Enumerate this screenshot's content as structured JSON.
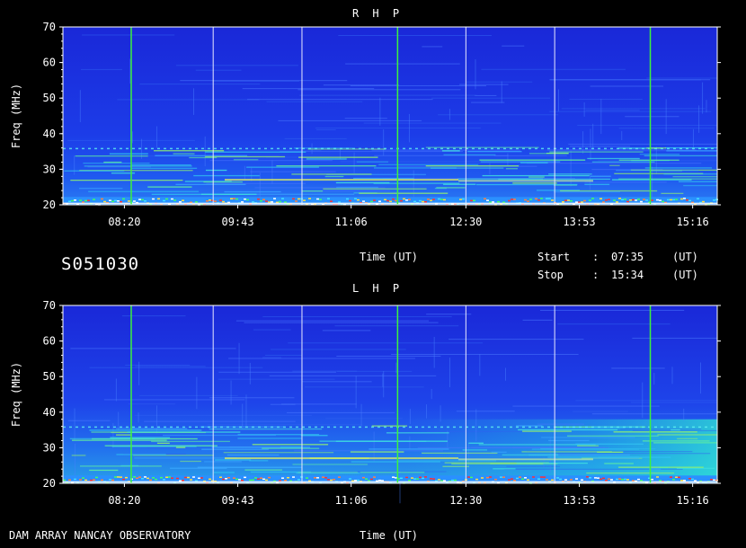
{
  "header": {
    "panel1_title": "R H P",
    "panel2_title": "L H P",
    "xlabel": "Time (UT)",
    "file_code": "S051030",
    "start_label": "Start",
    "start_sep": ":",
    "start_time": "07:35",
    "start_unit": "(UT)",
    "stop_label": "Stop",
    "stop_sep": ":",
    "stop_time": "15:34",
    "stop_unit": "(UT)",
    "footer": "DAM ARRAY  NANCAY OBSERVATORY"
  },
  "colors": {
    "background_blue": "#1a35e8",
    "guide_green": "#3df23d",
    "guide_white": "#e8e8ff"
  },
  "chart_data": [
    {
      "type": "heatmap",
      "title": "R H P",
      "xlabel": "Time (UT)",
      "ylabel": "Freq (MHz)",
      "x_ticks": [
        "08:20",
        "09:43",
        "11:06",
        "12:30",
        "13:53",
        "15:16"
      ],
      "y_ticks": [
        20,
        30,
        40,
        50,
        60,
        70
      ],
      "xlim": [
        "07:35",
        "15:34"
      ],
      "ylim": [
        20,
        70
      ],
      "green_markers": [
        "08:25",
        "11:40",
        "14:45"
      ],
      "white_markers": [
        "09:25",
        "10:30",
        "12:30",
        "13:35"
      ]
    },
    {
      "type": "heatmap",
      "title": "L H P",
      "xlabel": "Time (UT)",
      "ylabel": "Freq (MHz)",
      "x_ticks": [
        "08:20",
        "09:43",
        "11:06",
        "12:30",
        "13:53",
        "15:16"
      ],
      "y_ticks": [
        20,
        30,
        40,
        50,
        60,
        70
      ],
      "xlim": [
        "07:35",
        "15:34"
      ],
      "ylim": [
        20,
        70
      ],
      "green_markers": [
        "08:25",
        "11:40",
        "14:45"
      ],
      "white_markers": [
        "09:25",
        "10:30",
        "12:30",
        "13:35"
      ]
    }
  ]
}
